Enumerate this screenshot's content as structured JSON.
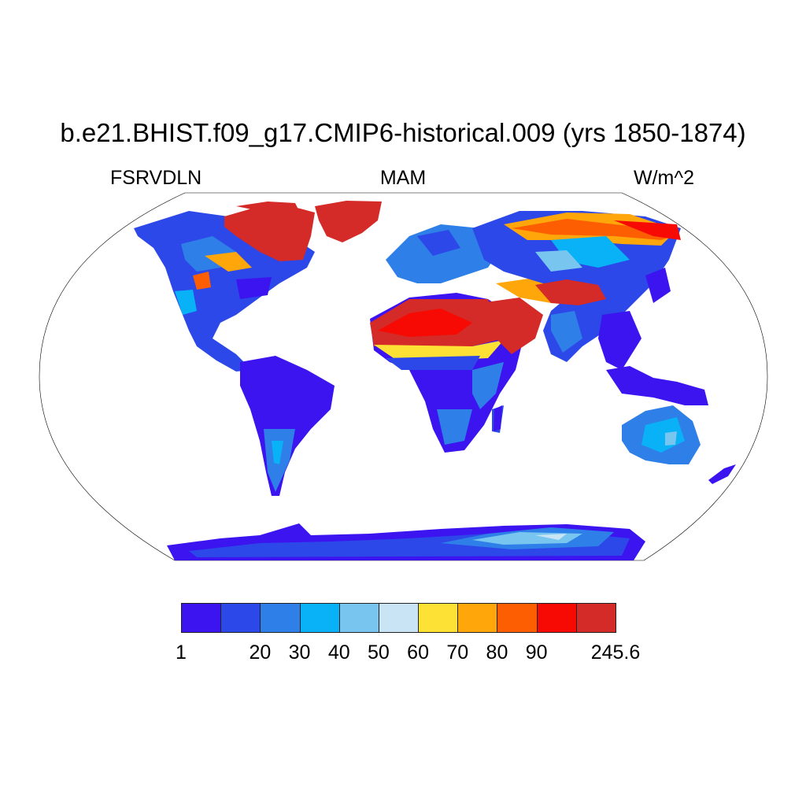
{
  "title": "b.e21.BHIST.f09_g17.CMIP6-historical.009 (yrs 1850-1874)",
  "variable": "FSRVDLN",
  "season": "MAM",
  "units": "W/m^2",
  "colorbar": {
    "colors": [
      "#3c14f0",
      "#2c48e8",
      "#2e7fe8",
      "#09b2f7",
      "#78c6f0",
      "#c8e4f5",
      "#fde135",
      "#fea60a",
      "#fe5e02",
      "#f70a04",
      "#d42a28"
    ],
    "labels": [
      "1",
      "",
      "20",
      "30",
      "40",
      "50",
      "60",
      "70",
      "80",
      "90",
      "",
      "245.6"
    ]
  },
  "map_data": {
    "projection": "Robinson",
    "regions": [
      {
        "name": "Canadian Arctic / Greenland",
        "level": "90-245.6"
      },
      {
        "name": "Sahara / Arabia",
        "level": "90-245.6"
      },
      {
        "name": "Tibetan Plateau",
        "level": "90-245.6"
      },
      {
        "name": "Northern Siberia",
        "level": "80-245.6"
      },
      {
        "name": "South America / Central Africa / SE Asia",
        "level": "1-20"
      },
      {
        "name": "Australia",
        "level": "20-60"
      },
      {
        "name": "Antarctica",
        "level": "1-60"
      }
    ]
  }
}
